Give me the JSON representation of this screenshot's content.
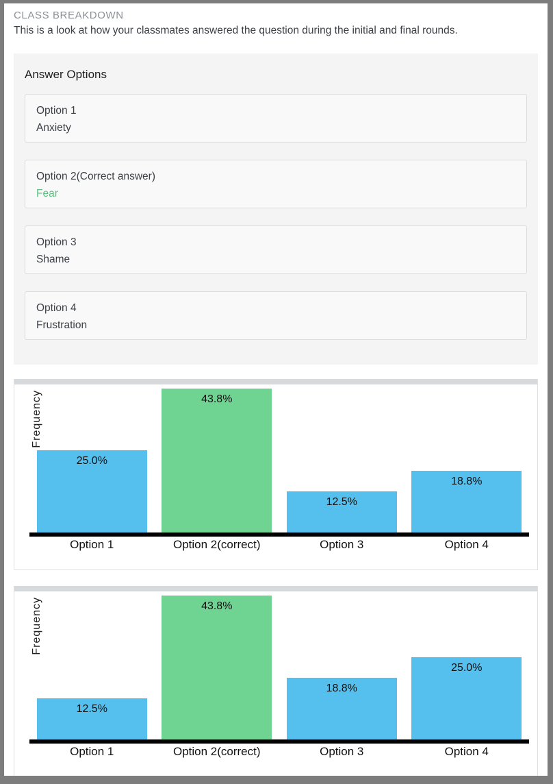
{
  "header": {
    "title": "CLASS BREAKDOWN",
    "subtitle": "This is a look at how your classmates answered the question during the initial and final rounds."
  },
  "answer_options": {
    "heading": "Answer Options",
    "options": [
      {
        "label": "Option 1",
        "value": "Anxiety",
        "correct": false
      },
      {
        "label": "Option 2(Correct answer)",
        "value": "Fear",
        "correct": true
      },
      {
        "label": "Option 3",
        "value": "Shame",
        "correct": false
      },
      {
        "label": "Option 4",
        "value": "Frustration",
        "correct": false
      }
    ]
  },
  "chart_data": [
    {
      "type": "bar",
      "round": "initial",
      "ylabel": "Frequency",
      "xlabel": "",
      "categories": [
        "Option 1",
        "Option 2(correct)",
        "Option 3",
        "Option 4"
      ],
      "values": [
        25.0,
        43.8,
        12.5,
        18.8
      ],
      "value_labels": [
        "25.0%",
        "43.8%",
        "12.5%",
        "18.8%"
      ],
      "highlight_index": 1,
      "ylim": [
        0,
        45
      ],
      "grid": false,
      "legend": "none"
    },
    {
      "type": "bar",
      "round": "final",
      "ylabel": "Frequency",
      "xlabel": "",
      "categories": [
        "Option 1",
        "Option 2(correct)",
        "Option 3",
        "Option 4"
      ],
      "values": [
        12.5,
        43.8,
        18.8,
        25.0
      ],
      "value_labels": [
        "12.5%",
        "43.8%",
        "18.8%",
        "25.0%"
      ],
      "highlight_index": 1,
      "ylim": [
        0,
        45
      ],
      "grid": false,
      "legend": "none"
    }
  ],
  "colors": {
    "bar_default": "#55bfed",
    "bar_correct": "#6fd392",
    "correct_text": "#57c17e",
    "axis": "#010101",
    "title_gray": "#8d9196",
    "body_text": "#3c4147",
    "section_bg": "#f4f4f4",
    "page_border": "#7d7d7d"
  }
}
